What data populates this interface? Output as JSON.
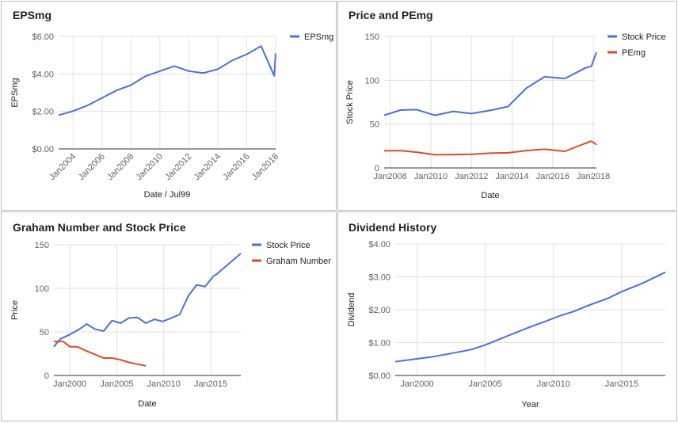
{
  "colors": {
    "blue": "#4a72d6",
    "red": "#e2492c",
    "grid": "#e0e0e0",
    "baseline": "#333333",
    "text": "#616161"
  },
  "chart_data": [
    {
      "type": "line",
      "title": "EPSmg",
      "xlabel": "Date / Jul99",
      "ylabel": "EPSmg",
      "xlim": [
        2003,
        2018
      ],
      "ylim": [
        0,
        6
      ],
      "x_ticks": [
        {
          "v": 2004,
          "label": "Jan2004"
        },
        {
          "v": 2006,
          "label": "Jan2006"
        },
        {
          "v": 2008,
          "label": "Jan2008"
        },
        {
          "v": 2010,
          "label": "Jan2010"
        },
        {
          "v": 2012,
          "label": "Jan2012"
        },
        {
          "v": 2014,
          "label": "Jan2014"
        },
        {
          "v": 2016,
          "label": "Jan2016"
        },
        {
          "v": 2018,
          "label": "Jan2018"
        }
      ],
      "y_ticks": [
        {
          "v": 0,
          "label": "$0.00"
        },
        {
          "v": 2,
          "label": "$2.00"
        },
        {
          "v": 4,
          "label": "$4.00"
        },
        {
          "v": 6,
          "label": "$6.00"
        }
      ],
      "x_label_rotate": true,
      "series": [
        {
          "name": "EPSmg",
          "color": "#4a72d6",
          "points": [
            [
              2003,
              1.8
            ],
            [
              2004,
              2.02
            ],
            [
              2005,
              2.32
            ],
            [
              2006,
              2.72
            ],
            [
              2007,
              3.12
            ],
            [
              2008,
              3.4
            ],
            [
              2009,
              3.88
            ],
            [
              2010,
              4.15
            ],
            [
              2011,
              4.42
            ],
            [
              2012,
              4.15
            ],
            [
              2013,
              4.05
            ],
            [
              2014,
              4.25
            ],
            [
              2015,
              4.72
            ],
            [
              2016,
              5.05
            ],
            [
              2017,
              5.48
            ],
            [
              2017.9,
              3.9
            ],
            [
              2018,
              5.1
            ]
          ]
        }
      ]
    },
    {
      "type": "line",
      "title": "Price and PEmg",
      "xlabel": "Date",
      "ylabel": "Stock Price",
      "xlim": [
        2007.7,
        2018.15
      ],
      "ylim": [
        0,
        150
      ],
      "x_ticks": [
        {
          "v": 2008,
          "label": "Jan2008"
        },
        {
          "v": 2010,
          "label": "Jan2010"
        },
        {
          "v": 2012,
          "label": "Jan2012"
        },
        {
          "v": 2014,
          "label": "Jan2014"
        },
        {
          "v": 2016,
          "label": "Jan2016"
        },
        {
          "v": 2018,
          "label": "Jan2018"
        }
      ],
      "y_ticks": [
        {
          "v": 0,
          "label": "0"
        },
        {
          "v": 50,
          "label": "50"
        },
        {
          "v": 100,
          "label": "100"
        },
        {
          "v": 150,
          "label": "150"
        }
      ],
      "x_label_rotate": false,
      "series": [
        {
          "name": "Stock Price",
          "color": "#4a72d6",
          "points": [
            [
              2007.7,
              60
            ],
            [
              2008.5,
              66
            ],
            [
              2009.3,
              66.5
            ],
            [
              2010.2,
              60
            ],
            [
              2011.1,
              64.5
            ],
            [
              2012,
              62
            ],
            [
              2013,
              66
            ],
            [
              2013.8,
              70
            ],
            [
              2014.7,
              91
            ],
            [
              2015.6,
              104
            ],
            [
              2016.6,
              102
            ],
            [
              2017.6,
              114
            ],
            [
              2017.9,
              116
            ],
            [
              2018.15,
              132
            ]
          ]
        },
        {
          "name": "PEmg",
          "color": "#e2492c",
          "points": [
            [
              2007.7,
              19.5
            ],
            [
              2008.5,
              19.8
            ],
            [
              2009.3,
              18
            ],
            [
              2010.2,
              15
            ],
            [
              2011.1,
              15.3
            ],
            [
              2012,
              15.5
            ],
            [
              2013,
              17
            ],
            [
              2013.8,
              17.3
            ],
            [
              2014.7,
              19.8
            ],
            [
              2015.6,
              21.3
            ],
            [
              2016.6,
              19
            ],
            [
              2017.6,
              28
            ],
            [
              2017.9,
              30.5
            ],
            [
              2018.15,
              26.5
            ]
          ]
        }
      ]
    },
    {
      "type": "line",
      "title": "Graham Number and Stock Price",
      "xlabel": "Date",
      "ylabel": "Price",
      "xlim": [
        1998.3,
        2018.2
      ],
      "ylim": [
        0,
        150
      ],
      "x_ticks": [
        {
          "v": 2000,
          "label": "Jan2000"
        },
        {
          "v": 2005,
          "label": "Jan2005"
        },
        {
          "v": 2010,
          "label": "Jan2010"
        },
        {
          "v": 2015,
          "label": "Jan2015"
        }
      ],
      "y_ticks": [
        {
          "v": 0,
          "label": "0"
        },
        {
          "v": 50,
          "label": "50"
        },
        {
          "v": 100,
          "label": "100"
        },
        {
          "v": 150,
          "label": "150"
        }
      ],
      "x_label_rotate": false,
      "series": [
        {
          "name": "Stock Price",
          "color": "#4a72d6",
          "points": [
            [
              1998.3,
              33
            ],
            [
              1999,
              42
            ],
            [
              2000,
              47
            ],
            [
              2001,
              53
            ],
            [
              2001.8,
              59
            ],
            [
              2002.7,
              53
            ],
            [
              2003.6,
              51
            ],
            [
              2004.5,
              63
            ],
            [
              2005.4,
              60
            ],
            [
              2006.3,
              66
            ],
            [
              2007.2,
              66.5
            ],
            [
              2008.1,
              60
            ],
            [
              2009,
              64.5
            ],
            [
              2009.9,
              62
            ],
            [
              2010.8,
              66
            ],
            [
              2011.7,
              70
            ],
            [
              2012.6,
              91
            ],
            [
              2013.5,
              104
            ],
            [
              2014.4,
              102
            ],
            [
              2015.3,
              114
            ],
            [
              2015.6,
              116
            ],
            [
              2018.2,
              140
            ]
          ]
        },
        {
          "name": "Graham Number",
          "color": "#e2492c",
          "points": [
            [
              1998.3,
              39
            ],
            [
              1999.3,
              39
            ],
            [
              2000,
              33
            ],
            [
              2000.8,
              33
            ],
            [
              2001.8,
              28
            ],
            [
              2002.7,
              24
            ],
            [
              2003.6,
              20
            ],
            [
              2004.5,
              20
            ],
            [
              2005.4,
              18
            ],
            [
              2006.3,
              15
            ],
            [
              2007.2,
              13
            ],
            [
              2008.1,
              11
            ]
          ]
        }
      ]
    },
    {
      "type": "line",
      "title": "Dividend History",
      "xlabel": "Year",
      "ylabel": "Dividend",
      "xlim": [
        1998.4,
        2018.2
      ],
      "ylim": [
        0,
        4
      ],
      "x_ticks": [
        {
          "v": 2000,
          "label": "Jan2000"
        },
        {
          "v": 2005,
          "label": "Jan2005"
        },
        {
          "v": 2010,
          "label": "Jan2010"
        },
        {
          "v": 2015,
          "label": "Jan2015"
        }
      ],
      "y_ticks": [
        {
          "v": 0,
          "label": "$0.00"
        },
        {
          "v": 1,
          "label": "$1.00"
        },
        {
          "v": 2,
          "label": "$2.00"
        },
        {
          "v": 3,
          "label": "$3.00"
        },
        {
          "v": 4,
          "label": "$4.00"
        }
      ],
      "x_label_rotate": false,
      "series": [
        {
          "name": "Dividend",
          "color": "#4a72d6",
          "points": [
            [
              1998.4,
              0.42
            ],
            [
              1999.5,
              0.48
            ],
            [
              2001,
              0.56
            ],
            [
              2002.5,
              0.67
            ],
            [
              2004,
              0.79
            ],
            [
              2005,
              0.93
            ],
            [
              2006.5,
              1.18
            ],
            [
              2008,
              1.43
            ],
            [
              2009.5,
              1.66
            ],
            [
              2010.5,
              1.82
            ],
            [
              2011.5,
              1.95
            ],
            [
              2012.5,
              2.12
            ],
            [
              2014,
              2.35
            ],
            [
              2015,
              2.55
            ],
            [
              2016.5,
              2.8
            ],
            [
              2018.2,
              3.14
            ]
          ]
        }
      ]
    }
  ]
}
